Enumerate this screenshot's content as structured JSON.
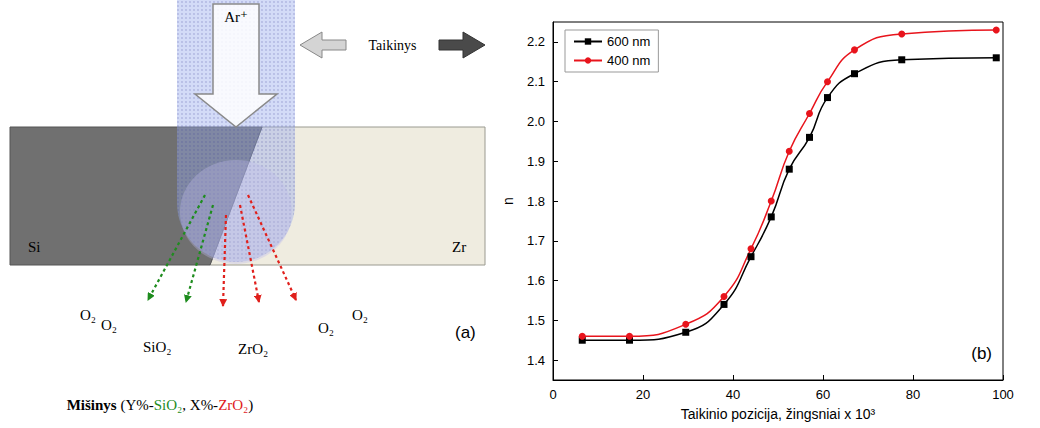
{
  "diagram": {
    "panel_label": "(a)",
    "beam": "Ar⁺",
    "target_label": "Taikinys",
    "blocks": [
      {
        "label": "Si",
        "color": "#707070"
      },
      {
        "label": "Zr",
        "color": "#efece0"
      }
    ],
    "gases": [
      "O₂",
      "O₂",
      "O₂",
      "O₂"
    ],
    "products": [
      {
        "label": "SiO₂",
        "color": "#1e8c1e"
      },
      {
        "label": "ZrO₂",
        "color": "#e0201c"
      }
    ],
    "mixture": {
      "label": "Mišinys",
      "items": [
        {
          "prefix": "Y%-",
          "text": "SiO₂",
          "color": "#1e8c1e"
        },
        {
          "prefix": "X%-",
          "text": "ZrO₂",
          "color": "#e0201c"
        }
      ]
    }
  },
  "chart_data": {
    "type": "line",
    "x_label": "Taikinio pozicija, žingsniai x 10³",
    "y_label": "n",
    "x": [
      6.5,
      17,
      29.5,
      38,
      44,
      48.5,
      52.5,
      57,
      61,
      67,
      77.5,
      98.5
    ],
    "series": [
      {
        "name": "600 nm",
        "color": "#000000",
        "marker": "square",
        "values": [
          1.45,
          1.45,
          1.47,
          1.54,
          1.66,
          1.76,
          1.88,
          1.96,
          2.06,
          2.12,
          2.155,
          2.16
        ]
      },
      {
        "name": "400 nm",
        "color": "#e8141c",
        "marker": "circle",
        "values": [
          1.46,
          1.46,
          1.49,
          1.56,
          1.68,
          1.8,
          1.925,
          2.02,
          2.1,
          2.18,
          2.22,
          2.23
        ]
      }
    ],
    "xlim": [
      0,
      100
    ],
    "xticks": [
      0,
      20,
      40,
      60,
      80,
      100
    ],
    "ylim": [
      1.35,
      2.25
    ],
    "yticks": [
      1.4,
      1.5,
      1.6,
      1.7,
      1.8,
      1.9,
      {
        "value": 2,
        "label": "2.0"
      },
      2.1,
      2.2
    ],
    "grid": false,
    "legend": "upper left",
    "annotations": [
      "(b)"
    ]
  }
}
